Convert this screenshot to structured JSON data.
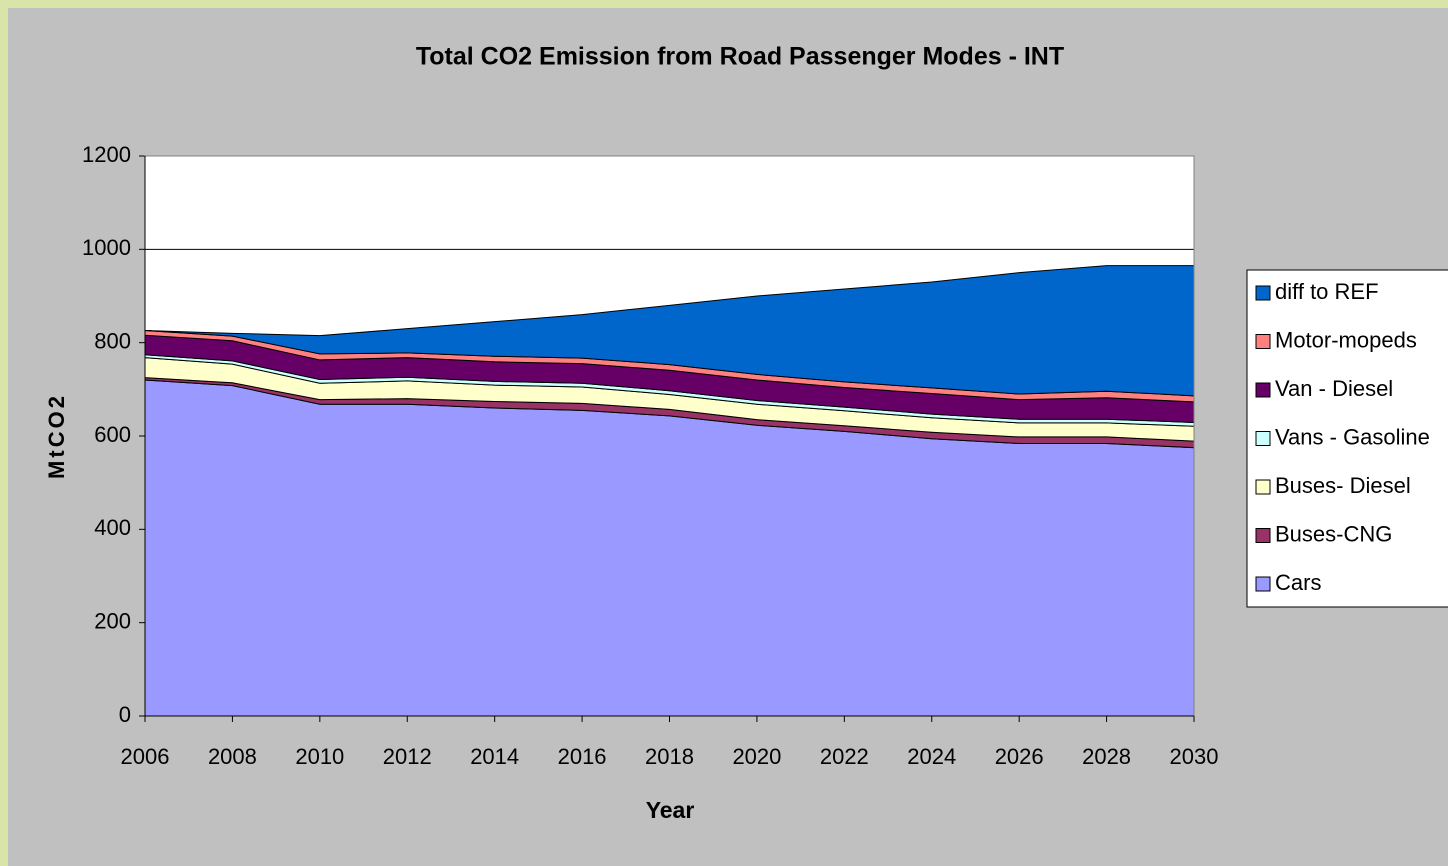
{
  "chart_data": {
    "type": "stacked_area",
    "title": "Total CO2 Emission from Road Passenger Modes - INT",
    "x_label": "Year",
    "y_label": "MtCO2",
    "x": [
      2006,
      2008,
      2010,
      2012,
      2014,
      2016,
      2018,
      2020,
      2022,
      2024,
      2026,
      2028,
      2030
    ],
    "xlim": [
      2006,
      2030
    ],
    "xticks": [
      2006,
      2008,
      2010,
      2012,
      2014,
      2016,
      2018,
      2020,
      2022,
      2024,
      2026,
      2028,
      2030
    ],
    "ylim": [
      0,
      1200
    ],
    "yticks": [
      0,
      200,
      400,
      600,
      800,
      1000,
      1200
    ],
    "grid": true,
    "series": [
      {
        "name": "Cars",
        "color": "#9999ff",
        "values": [
          720,
          708,
          668,
          668,
          660,
          655,
          643,
          623,
          610,
          594,
          584,
          584,
          575
        ]
      },
      {
        "name": "Buses-CNG",
        "color": "#993366",
        "values": [
          5,
          6,
          10,
          12,
          14,
          15,
          14,
          12,
          12,
          14,
          14,
          14,
          14
        ]
      },
      {
        "name": "Buses- Diesel",
        "color": "#ffffcc",
        "values": [
          43,
          40,
          35,
          38,
          35,
          35,
          32,
          33,
          32,
          31,
          30,
          30,
          32
        ]
      },
      {
        "name": "Vans - Gasoline",
        "color": "#ccffff",
        "values": [
          6,
          7,
          8,
          8,
          8,
          8,
          8,
          8,
          8,
          8,
          8,
          8,
          8
        ]
      },
      {
        "name": "Van - Diesel",
        "color": "#660066",
        "values": [
          42,
          43,
          42,
          42,
          42,
          42,
          44,
          44,
          42,
          44,
          42,
          46,
          44
        ]
      },
      {
        "name": "Motor-mopeds",
        "color": "#ff8080",
        "values": [
          10,
          10,
          13,
          10,
          12,
          12,
          12,
          12,
          12,
          12,
          12,
          14,
          13
        ]
      },
      {
        "name": "diff to REF",
        "color": "#0066cc",
        "values": [
          0,
          6,
          39,
          52,
          74,
          93,
          127,
          168,
          199,
          227,
          260,
          269,
          279
        ]
      }
    ]
  }
}
